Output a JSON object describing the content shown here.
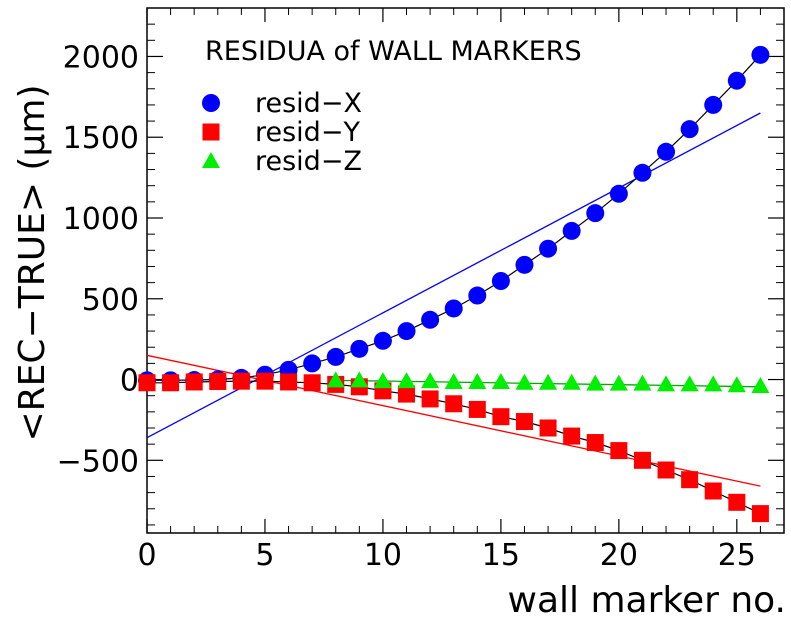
{
  "chart_data": {
    "type": "scatter",
    "title": "RESIDUA of WALL MARKERS",
    "xlabel": "wall marker no.",
    "ylabel": "<REC−TRUE> (μm)",
    "xlim": [
      0,
      27
    ],
    "ylim": [
      -950,
      2300
    ],
    "x_ticks": [
      0,
      5,
      10,
      15,
      20,
      25
    ],
    "x_tick_labels": [
      "0",
      "5",
      "10",
      "15",
      "20",
      "25"
    ],
    "y_ticks": [
      -500,
      0,
      500,
      1000,
      1500,
      2000
    ],
    "y_tick_labels": [
      "−500",
      "0",
      "500",
      "1000",
      "1500",
      "2000"
    ],
    "legend_position": "top-left",
    "series": [
      {
        "name": "resid−X",
        "color": "#0000ff",
        "marker": "circle",
        "x": [
          0,
          1,
          2,
          3,
          4,
          5,
          6,
          7,
          8,
          9,
          10,
          11,
          12,
          13,
          14,
          15,
          16,
          17,
          18,
          19,
          20,
          21,
          22,
          23,
          24,
          25,
          26
        ],
        "y": [
          -5,
          -5,
          -3,
          0,
          10,
          30,
          60,
          100,
          140,
          190,
          240,
          300,
          370,
          440,
          520,
          610,
          710,
          810,
          920,
          1030,
          1150,
          1280,
          1410,
          1550,
          1700,
          1850,
          2010
        ],
        "fit": {
          "x": [
            0,
            26
          ],
          "y": [
            -360,
            1650
          ],
          "color": "#0000ff"
        },
        "smooth": true
      },
      {
        "name": "resid−Y",
        "color": "#ff0000",
        "marker": "square",
        "x": [
          0,
          1,
          2,
          3,
          4,
          5,
          6,
          7,
          8,
          9,
          10,
          11,
          12,
          13,
          14,
          15,
          16,
          17,
          18,
          19,
          20,
          21,
          22,
          23,
          24,
          25,
          26
        ],
        "y": [
          -20,
          -20,
          -15,
          -12,
          -10,
          -10,
          -15,
          -20,
          -30,
          -45,
          -70,
          -90,
          -120,
          -150,
          -185,
          -230,
          -260,
          -300,
          -350,
          -390,
          -440,
          -500,
          -560,
          -620,
          -690,
          -760,
          -830
        ],
        "fit": {
          "x": [
            0,
            26
          ],
          "y": [
            150,
            -660
          ],
          "color": "#ff0000"
        },
        "smooth": true
      },
      {
        "name": "resid−Z",
        "color": "#00ee00",
        "marker": "triangle",
        "x": [
          8,
          9,
          10,
          11,
          12,
          13,
          14,
          15,
          16,
          17,
          18,
          19,
          20,
          21,
          22,
          23,
          24,
          25,
          26
        ],
        "y": [
          -5,
          -5,
          -10,
          -10,
          -10,
          -15,
          -15,
          -15,
          -20,
          -20,
          -20,
          -25,
          -25,
          -25,
          -30,
          -30,
          -30,
          -35,
          -40
        ],
        "fit": {
          "x": [
            8,
            26
          ],
          "y": [
            -5,
            -45
          ],
          "color": "#00aa00"
        },
        "smooth": false
      }
    ]
  }
}
